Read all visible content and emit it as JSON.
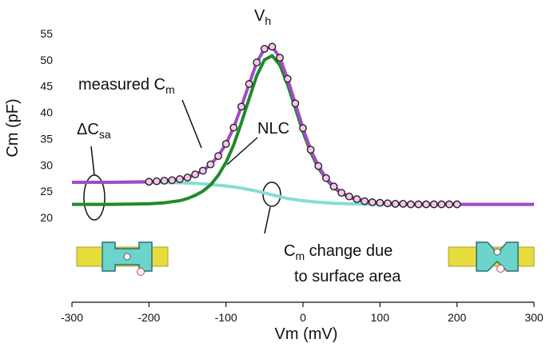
{
  "chart_data": {
    "type": "line",
    "ylabel": "Cm (pF)",
    "xlabel": "Vm (mV)",
    "xlim": [
      -300,
      300
    ],
    "ylim": [
      20,
      55
    ],
    "xticks": [
      -300,
      -200,
      -100,
      0,
      100,
      200,
      300
    ],
    "yticks": [
      20,
      25,
      30,
      35,
      40,
      45,
      50,
      55
    ],
    "annotations": [
      {
        "text": "V",
        "sub": "h"
      },
      {
        "text": "measured C",
        "sub": "m"
      },
      {
        "text": "ΔC",
        "sub": "sa"
      },
      {
        "text": "NLC"
      },
      {
        "text": "C",
        "sub": "m",
        "tail": " change due"
      },
      {
        "text": "to surface area"
      }
    ],
    "series": [
      {
        "color": "#86dcd6",
        "line": true,
        "marker": "none",
        "x": [
          -300,
          -250,
          -200,
          -180,
          -160,
          -140,
          -120,
          -100,
          -80,
          -60,
          -40,
          -20,
          0,
          20,
          40,
          60,
          80,
          100,
          140,
          200,
          300
        ],
        "values": [
          26.7,
          26.7,
          26.7,
          26.65,
          26.6,
          26.5,
          26.3,
          26.0,
          25.6,
          25.0,
          24.3,
          23.6,
          23.2,
          22.9,
          22.7,
          22.6,
          22.55,
          22.5,
          22.5,
          22.5,
          22.5
        ]
      },
      {
        "color": "#1f8a2a",
        "line": true,
        "marker": "none",
        "x": [
          -300,
          -250,
          -200,
          -190,
          -180,
          -170,
          -160,
          -150,
          -140,
          -130,
          -120,
          -110,
          -100,
          -90,
          -80,
          -70,
          -60,
          -50,
          -40,
          -30,
          -20,
          -10,
          0,
          10,
          20,
          30,
          40,
          50,
          60,
          70,
          80,
          90,
          100,
          110,
          120,
          130,
          140,
          150,
          160,
          170,
          180,
          190,
          200
        ],
        "values": [
          22.5,
          22.5,
          22.6,
          22.7,
          22.8,
          23.0,
          23.2,
          23.6,
          24.2,
          25.0,
          26.2,
          28.0,
          30.5,
          33.8,
          38.0,
          42.6,
          47.0,
          50.0,
          50.8,
          49.0,
          45.3,
          40.8,
          36.3,
          32.4,
          29.4,
          27.3,
          25.7,
          24.6,
          23.9,
          23.4,
          23.1,
          22.9,
          22.8,
          22.7,
          22.6,
          22.6,
          22.5,
          22.5,
          22.5,
          22.5,
          22.5,
          22.5,
          22.5
        ]
      },
      {
        "color": "#a44ac6",
        "line": true,
        "marker": "none",
        "x": [
          -300,
          -250,
          -200,
          -190,
          -180,
          -170,
          -160,
          -150,
          -140,
          -130,
          -120,
          -110,
          -100,
          -90,
          -80,
          -70,
          -60,
          -50,
          -40,
          -30,
          -20,
          -10,
          0,
          10,
          20,
          30,
          40,
          50,
          60,
          70,
          80,
          90,
          100,
          110,
          120,
          130,
          140,
          150,
          160,
          170,
          180,
          190,
          200,
          250,
          300
        ],
        "values": [
          26.7,
          26.7,
          26.8,
          26.9,
          27.0,
          27.1,
          27.3,
          27.6,
          28.2,
          28.9,
          30.1,
          31.7,
          34.0,
          37.1,
          41.1,
          45.4,
          49.5,
          52.1,
          52.5,
          50.4,
          46.4,
          41.7,
          37.0,
          32.9,
          29.8,
          27.5,
          25.9,
          24.7,
          24.0,
          23.5,
          23.1,
          22.9,
          22.8,
          22.7,
          22.6,
          22.6,
          22.5,
          22.5,
          22.5,
          22.5,
          22.5,
          22.5,
          22.5,
          22.5,
          22.5
        ]
      },
      {
        "color": "#222222",
        "line": false,
        "marker": "circle",
        "x": [
          -200,
          -190,
          -180,
          -170,
          -160,
          -150,
          -140,
          -130,
          -120,
          -110,
          -100,
          -90,
          -80,
          -70,
          -60,
          -50,
          -40,
          -30,
          -20,
          -10,
          0,
          10,
          20,
          30,
          40,
          50,
          60,
          70,
          80,
          90,
          100,
          110,
          120,
          130,
          140,
          150,
          160,
          170,
          180,
          190,
          200
        ],
        "values": [
          26.8,
          26.9,
          27.0,
          27.1,
          27.3,
          27.6,
          28.2,
          28.9,
          30.1,
          31.7,
          34.0,
          37.1,
          41.1,
          45.4,
          49.5,
          52.1,
          52.5,
          50.4,
          46.4,
          41.7,
          37.0,
          32.9,
          29.8,
          27.5,
          25.9,
          24.7,
          24.0,
          23.5,
          23.1,
          22.9,
          22.8,
          22.7,
          22.6,
          22.6,
          22.5,
          22.5,
          22.5,
          22.5,
          22.5,
          22.5,
          22.5
        ]
      }
    ]
  }
}
